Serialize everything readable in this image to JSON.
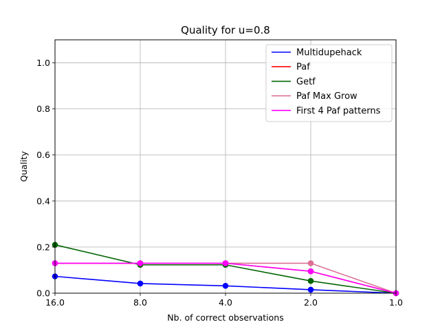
{
  "chart_data": {
    "type": "line",
    "title": "Quality for u=0.8",
    "xlabel": "Nb. of correct observations",
    "ylabel": "Quality",
    "categories": [
      "16.0",
      "8.0",
      "4.0",
      "2.0",
      "1.0"
    ],
    "x": [
      16.0,
      8.0,
      4.0,
      2.0,
      1.0
    ],
    "x_scale": "log2",
    "x_reversed": true,
    "xlim": [
      16.0,
      1.0
    ],
    "ylim": [
      0.0,
      1.1
    ],
    "yticks": [
      "0.0",
      "0.2",
      "0.4",
      "0.6",
      "0.8",
      "1.0"
    ],
    "grid": true,
    "legend_position": "top-right",
    "series": [
      {
        "name": "Multidupehack",
        "color": "#0000ff",
        "values": [
          0.073,
          0.042,
          0.032,
          0.015,
          0.0
        ]
      },
      {
        "name": "Paf",
        "color": "#ff0000",
        "values": [
          0.13,
          0.13,
          0.13,
          0.095,
          0.0
        ]
      },
      {
        "name": "Getf",
        "color": "#006400",
        "values": [
          0.21,
          0.123,
          0.123,
          0.053,
          0.0
        ]
      },
      {
        "name": "Paf Max Grow",
        "color": "#db7093",
        "values": [
          0.13,
          0.13,
          0.13,
          0.13,
          0.0
        ]
      },
      {
        "name": "First 4 Paf patterns",
        "color": "#ff00ff",
        "values": [
          0.13,
          0.13,
          0.13,
          0.095,
          0.0
        ]
      }
    ]
  }
}
